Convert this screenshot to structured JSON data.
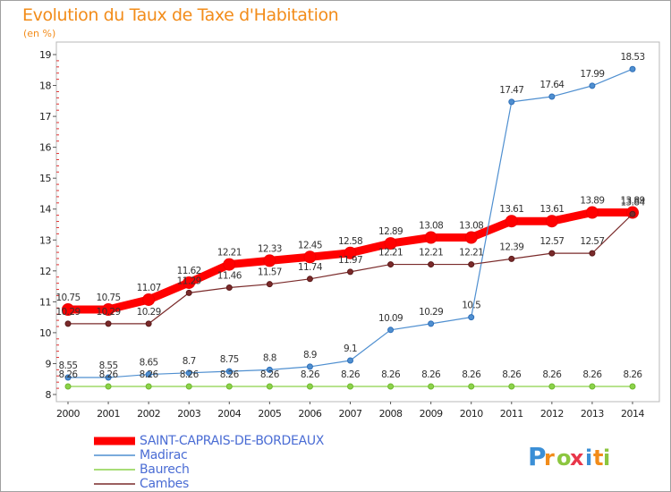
{
  "chart_data": {
    "type": "line",
    "title": "Evolution du Taux de Taxe d'Habitation",
    "ylabel": "(en %)",
    "xlabel": "",
    "categories": [
      "2000",
      "2001",
      "2002",
      "2003",
      "2004",
      "2005",
      "2006",
      "2007",
      "2008",
      "2009",
      "2010",
      "2011",
      "2012",
      "2013",
      "2014"
    ],
    "ylim": [
      8,
      19
    ],
    "yticks": [
      8,
      9,
      10,
      11,
      12,
      13,
      14,
      15,
      16,
      17,
      18,
      19
    ],
    "series": [
      {
        "name": "SAINT-CAPRAIS-DE-BORDEAUX",
        "color": "#ff0000",
        "values": [
          10.75,
          10.75,
          11.07,
          11.62,
          12.21,
          12.33,
          12.45,
          12.58,
          12.89,
          13.08,
          13.08,
          13.61,
          13.61,
          13.89,
          13.89
        ],
        "labels": [
          "10.75",
          "10.75",
          "11.07",
          "11.62",
          "12.21",
          "12.33",
          "12.45",
          "12.58",
          "12.89",
          "13.08",
          "13.08",
          "13.61",
          "13.61",
          "13.89",
          "13.89"
        ]
      },
      {
        "name": "Madirac",
        "color": "#4f8fd0",
        "values": [
          8.55,
          8.55,
          8.65,
          8.7,
          8.75,
          8.8,
          8.9,
          9.1,
          10.09,
          10.29,
          10.5,
          17.47,
          17.64,
          17.99,
          18.53
        ],
        "labels": [
          "8.55",
          "8.55",
          "8.65",
          "8.7",
          "8.75",
          "8.8",
          "8.9",
          "9.1",
          "10.09",
          "10.29",
          "10.5",
          "17.47",
          "17.64",
          "17.99",
          "18.53"
        ]
      },
      {
        "name": "Baurech",
        "color": "#8cd24a",
        "values": [
          8.26,
          8.26,
          8.26,
          8.26,
          8.26,
          8.26,
          8.26,
          8.26,
          8.26,
          8.26,
          8.26,
          8.26,
          8.26,
          8.26,
          8.26
        ],
        "labels": [
          "8.26",
          "8.26",
          "8.26",
          "8.26",
          "8.26",
          "8.26",
          "8.26",
          "8.26",
          "8.26",
          "8.26",
          "8.26",
          "8.26",
          "8.26",
          "8.26",
          "8.26"
        ]
      },
      {
        "name": "Cambes",
        "color": "#7a2a2a",
        "values": [
          10.29,
          10.29,
          10.29,
          11.29,
          11.46,
          11.57,
          11.74,
          11.97,
          12.21,
          12.21,
          12.21,
          12.39,
          12.57,
          12.57,
          13.84
        ],
        "labels": [
          "10.29",
          "10.29",
          "10.29",
          "11.29",
          "11.46",
          "11.57",
          "11.74",
          "11.97",
          "12.21",
          "12.21",
          "12.21",
          "12.39",
          "12.57",
          "12.57",
          "13.84"
        ]
      }
    ],
    "grid": false,
    "legend": "bottom-left"
  },
  "logo": {
    "text": "Proxiti",
    "letters": [
      "P",
      "r",
      "o",
      "x",
      "i",
      "t",
      "i"
    ],
    "colors": [
      "#3b8fd6",
      "#f28c1a",
      "#8cc63f",
      "#e8374a",
      "#3b8fd6",
      "#f28c1a",
      "#8cc63f"
    ]
  }
}
